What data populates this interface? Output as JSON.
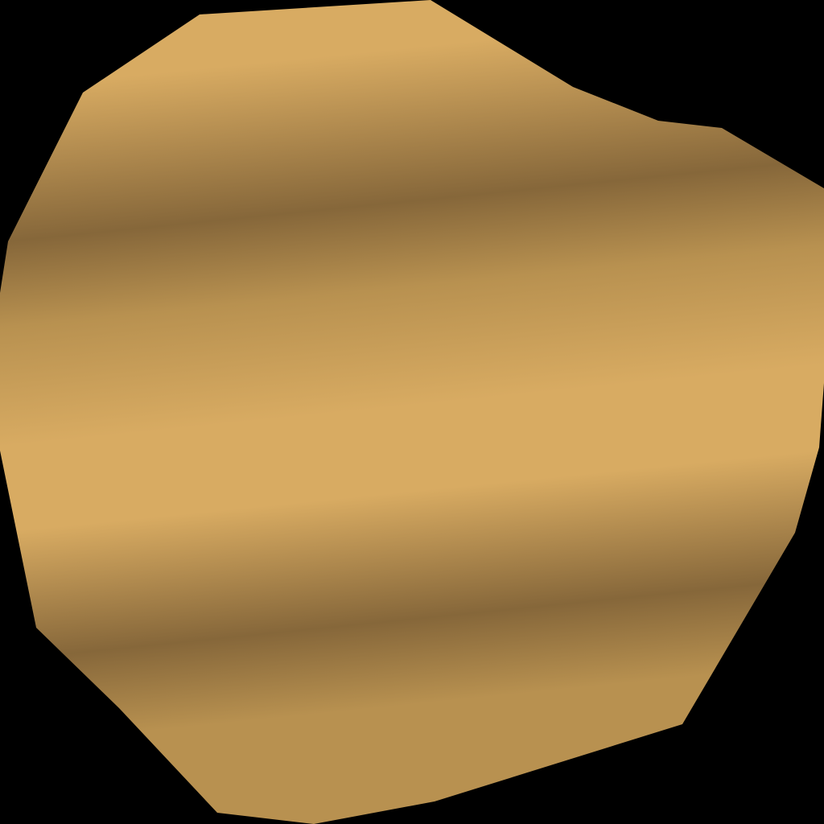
{
  "scene": {
    "background_color": "#000000",
    "shape": "irregular-polygon",
    "fill_style": "banded-linear-gradient",
    "colors": {
      "light_gold": "#d8ab62",
      "mid_gold": "#b89150",
      "dark_brown": "#86673a"
    }
  }
}
